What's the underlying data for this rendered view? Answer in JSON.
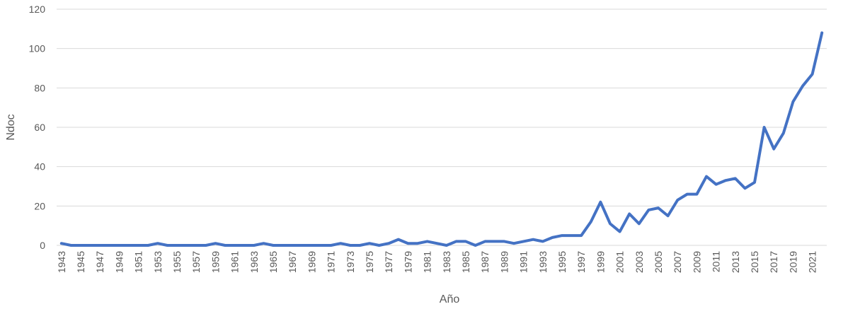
{
  "chart_data": {
    "type": "line",
    "title": "",
    "xlabel": "Año",
    "ylabel": "Ndoc",
    "ylim": [
      0,
      120
    ],
    "yticks": [
      0,
      20,
      40,
      60,
      80,
      100,
      120
    ],
    "grid": true,
    "legend": "none",
    "line_color": "#4472C4",
    "x": [
      1943,
      1944,
      1945,
      1946,
      1947,
      1948,
      1949,
      1950,
      1951,
      1952,
      1953,
      1954,
      1955,
      1956,
      1957,
      1958,
      1959,
      1960,
      1961,
      1962,
      1963,
      1964,
      1965,
      1966,
      1967,
      1968,
      1969,
      1970,
      1971,
      1972,
      1973,
      1974,
      1975,
      1976,
      1977,
      1978,
      1979,
      1980,
      1981,
      1982,
      1983,
      1984,
      1985,
      1986,
      1987,
      1988,
      1989,
      1990,
      1991,
      1992,
      1993,
      1994,
      1995,
      1996,
      1997,
      1998,
      1999,
      2000,
      2001,
      2002,
      2003,
      2004,
      2005,
      2006,
      2007,
      2008,
      2009,
      2010,
      2011,
      2012,
      2013,
      2014,
      2015,
      2016,
      2017,
      2018,
      2019,
      2020,
      2021,
      2022
    ],
    "xticklabels": [
      "1943",
      "1945",
      "1947",
      "1949",
      "1951",
      "1953",
      "1955",
      "1957",
      "1959",
      "1961",
      "1963",
      "1965",
      "1967",
      "1969",
      "1971",
      "1973",
      "1975",
      "1977",
      "1979",
      "1981",
      "1983",
      "1985",
      "1987",
      "1989",
      "1991",
      "1993",
      "1995",
      "1997",
      "1999",
      "2001",
      "2003",
      "2005",
      "2007",
      "2009",
      "2011",
      "2013",
      "2015",
      "2017",
      "2019",
      "2021"
    ],
    "series": [
      {
        "values": [
          1,
          0,
          0,
          0,
          0,
          0,
          0,
          0,
          0,
          0,
          1,
          0,
          0,
          0,
          0,
          0,
          1,
          0,
          0,
          0,
          0,
          1,
          0,
          0,
          0,
          0,
          0,
          0,
          0,
          1,
          0,
          0,
          1,
          0,
          1,
          3,
          1,
          1,
          2,
          1,
          0,
          2,
          2,
          0,
          2,
          2,
          2,
          1,
          2,
          3,
          2,
          4,
          5,
          5,
          5,
          12,
          22,
          11,
          7,
          16,
          11,
          18,
          19,
          15,
          23,
          26,
          26,
          35,
          31,
          33,
          34,
          29,
          32,
          60,
          49,
          57,
          73,
          81,
          87,
          108
        ]
      }
    ]
  }
}
